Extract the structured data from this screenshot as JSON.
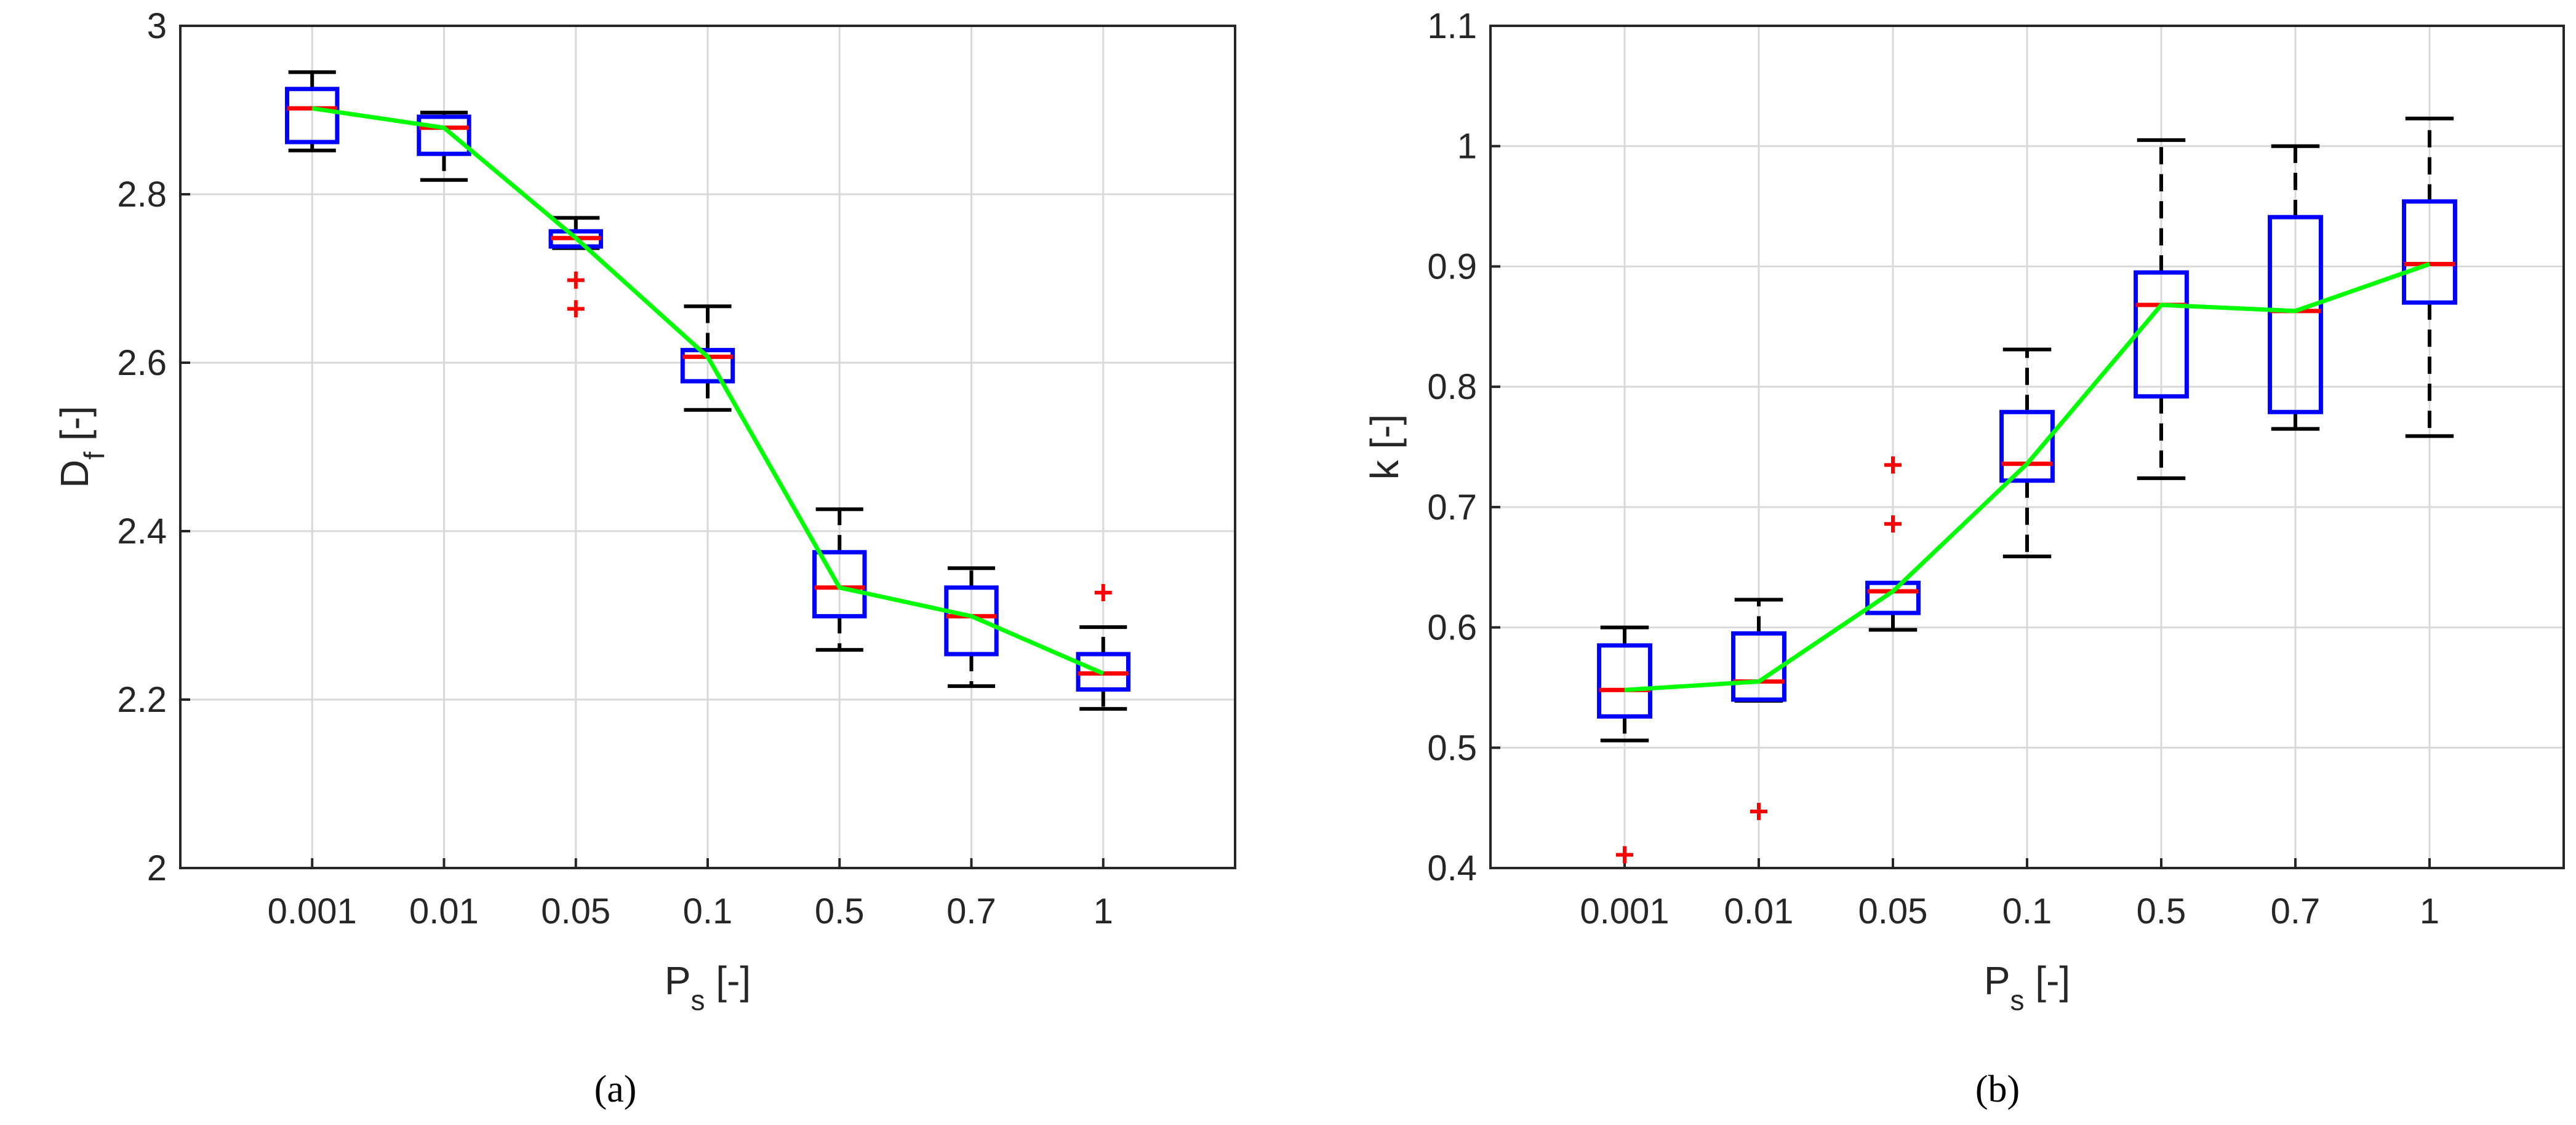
{
  "chart_data": [
    {
      "type": "boxplot",
      "panel_label": "(a)",
      "panel_letter": "a",
      "categories": [
        "0.001",
        "0.01",
        "0.05",
        "0.1",
        "0.5",
        "0.7",
        "1"
      ],
      "xlabel_main": "P",
      "xlabel_sub": "s",
      "xlabel_unit": " [-]",
      "ylabel_main": "D",
      "ylabel_sub": "f",
      "ylabel_unit": " [-]",
      "ylim": [
        2,
        3
      ],
      "yticks": [
        2,
        2.2,
        2.4,
        2.6,
        2.8,
        3
      ],
      "ytick_labels": [
        "2",
        "2.2",
        "2.4",
        "2.6",
        "2.8",
        "3"
      ],
      "grid": true,
      "boxes": [
        {
          "whisker_low": 2.852,
          "q1": 2.862,
          "median": 2.902,
          "q3": 2.925,
          "whisker_high": 2.945,
          "outliers": []
        },
        {
          "whisker_low": 2.817,
          "q1": 2.848,
          "median": 2.879,
          "q3": 2.892,
          "whisker_high": 2.897,
          "outliers": []
        },
        {
          "whisker_low": 2.736,
          "q1": 2.738,
          "median": 2.748,
          "q3": 2.756,
          "whisker_high": 2.772,
          "outliers": [
            2.698,
            2.664
          ]
        },
        {
          "whisker_low": 2.544,
          "q1": 2.578,
          "median": 2.607,
          "q3": 2.615,
          "whisker_high": 2.667,
          "outliers": []
        },
        {
          "whisker_low": 2.259,
          "q1": 2.299,
          "median": 2.333,
          "q3": 2.375,
          "whisker_high": 2.426,
          "outliers": []
        },
        {
          "whisker_low": 2.216,
          "q1": 2.254,
          "median": 2.299,
          "q3": 2.333,
          "whisker_high": 2.356,
          "outliers": []
        },
        {
          "whisker_low": 2.189,
          "q1": 2.212,
          "median": 2.231,
          "q3": 2.254,
          "whisker_high": 2.286,
          "outliers": [
            2.327
          ]
        }
      ],
      "trend_line": [
        2.902,
        2.879,
        2.748,
        2.607,
        2.333,
        2.299,
        2.231
      ]
    },
    {
      "type": "boxplot",
      "panel_label": "(b)",
      "panel_letter": "b",
      "categories": [
        "0.001",
        "0.01",
        "0.05",
        "0.1",
        "0.5",
        "0.7",
        "1"
      ],
      "xlabel_main": "P",
      "xlabel_sub": "s",
      "xlabel_unit": " [-]",
      "ylabel_main": "k [-]",
      "ylim": [
        0.4,
        1.1
      ],
      "yticks": [
        0.4,
        0.5,
        0.6,
        0.7,
        0.8,
        0.9,
        1,
        1.1
      ],
      "ytick_labels": [
        "0.4",
        "0.5",
        "0.6",
        "0.7",
        "0.8",
        "0.9",
        "1",
        "1.1"
      ],
      "grid": true,
      "boxes": [
        {
          "whisker_low": 0.506,
          "q1": 0.526,
          "median": 0.548,
          "q3": 0.585,
          "whisker_high": 0.6,
          "outliers": [
            0.411
          ]
        },
        {
          "whisker_low": 0.539,
          "q1": 0.54,
          "median": 0.555,
          "q3": 0.595,
          "whisker_high": 0.623,
          "outliers": [
            0.447
          ]
        },
        {
          "whisker_low": 0.598,
          "q1": 0.612,
          "median": 0.63,
          "q3": 0.637,
          "whisker_high": 0.637,
          "outliers": [
            0.735,
            0.686
          ]
        },
        {
          "whisker_low": 0.659,
          "q1": 0.722,
          "median": 0.736,
          "q3": 0.779,
          "whisker_high": 0.831,
          "outliers": []
        },
        {
          "whisker_low": 0.724,
          "q1": 0.792,
          "median": 0.868,
          "q3": 0.895,
          "whisker_high": 1.005,
          "outliers": []
        },
        {
          "whisker_low": 0.765,
          "q1": 0.779,
          "median": 0.863,
          "q3": 0.941,
          "whisker_high": 1.0,
          "outliers": []
        },
        {
          "whisker_low": 0.759,
          "q1": 0.87,
          "median": 0.902,
          "q3": 0.954,
          "whisker_high": 1.023,
          "outliers": []
        }
      ],
      "trend_line": [
        0.548,
        0.555,
        0.63,
        0.736,
        0.868,
        0.863,
        0.902
      ]
    }
  ]
}
